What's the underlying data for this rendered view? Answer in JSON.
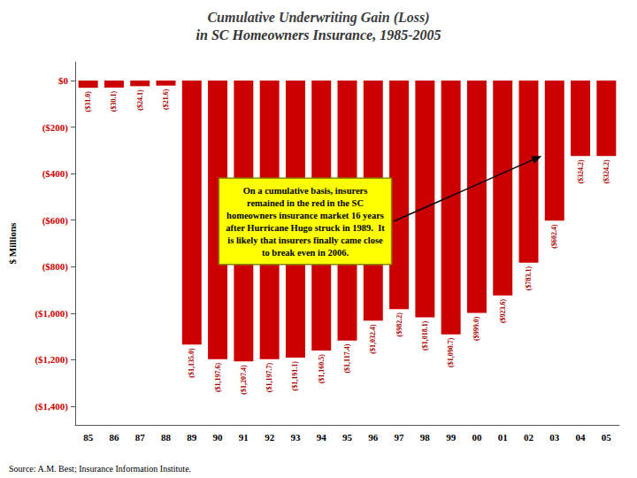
{
  "chart_data": {
    "type": "bar",
    "title": "Cumulative Underwriting Gain (Loss)",
    "subtitle": "in SC Homeowners Insurance, 1985-2005",
    "ylabel": "$ Millions",
    "categories": [
      "85",
      "86",
      "87",
      "88",
      "89",
      "90",
      "91",
      "92",
      "93",
      "94",
      "95",
      "96",
      "97",
      "98",
      "99",
      "00",
      "01",
      "02",
      "03",
      "04",
      "05"
    ],
    "values": [
      -31.0,
      -30.1,
      -24.1,
      -21.6,
      -1135.0,
      -1197.6,
      -1207.4,
      -1197.7,
      -1191.1,
      -1160.5,
      -1117.4,
      -1032.4,
      -982.2,
      -1018.1,
      -1090.7,
      -999.0,
      -923.6,
      -783.1,
      -602.4,
      -324.2,
      -324.2
    ],
    "value_labels": [
      "($31.0)",
      "($30.1)",
      "($24.1)",
      "($21.6)",
      "($1,135.0)",
      "($1,197.6)",
      "($1,207.4)",
      "($1,197.7)",
      "($1,191.1)",
      "($1,160.5)",
      "($1,117.4)",
      "($1,032.4)",
      "($982.2)",
      "($1,018.1)",
      "($1,090.7)",
      "($999.0)",
      "($923.6)",
      "($783.1)",
      "($602.4)",
      "($324.2)",
      "($324.2)"
    ],
    "data_labels": true,
    "color": "#cc0000",
    "ylim": [
      -1480,
      80
    ],
    "yticks": [
      {
        "value": 0,
        "label": "$0"
      },
      {
        "value": -200,
        "label": "($200)"
      },
      {
        "value": -400,
        "label": "($400)"
      },
      {
        "value": -600,
        "label": "($600)"
      },
      {
        "value": -800,
        "label": "($800)"
      },
      {
        "value": -1000,
        "label": "($1,000)"
      },
      {
        "value": -1200,
        "label": "($1,200)"
      },
      {
        "value": -1400,
        "label": "($1,400)"
      }
    ],
    "grid": false,
    "annotation": "On a cumulative basis, insurers\nremained in the red in the SC\nhomeowners insurance market 16 years\nafter Hurricane Hugo struck in 1989.  It\nis likely that insurers finally came close\nto break even in 2006.",
    "source": "Source: A.M. Best; Insurance Information Institute."
  }
}
